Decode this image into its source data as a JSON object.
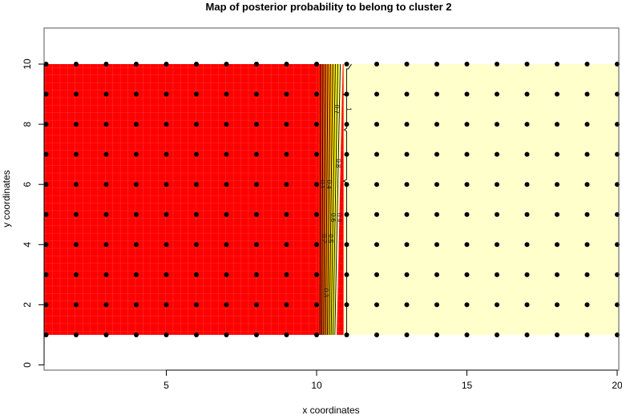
{
  "chart_data": {
    "type": "heatmap",
    "title": "Map of posterior probability to belong to cluster  2",
    "xlabel": "x coordinates",
    "ylabel": "y coordinates",
    "xlim": [
      1,
      20
    ],
    "ylim": [
      -0.2,
      11.2
    ],
    "x_ticks": [
      5,
      10,
      15,
      20
    ],
    "y_ticks": [
      0,
      2,
      4,
      6,
      8,
      10
    ],
    "grid": false,
    "colors": {
      "low": "#ff0000",
      "mid": "#ff8000",
      "high_edge": "#ffff00",
      "high": "#ffffcc",
      "points": "#000000"
    },
    "points": {
      "x": [
        1,
        2,
        3,
        4,
        5,
        6,
        7,
        8,
        9,
        10,
        11,
        12,
        13,
        14,
        15,
        16,
        17,
        18,
        19,
        20
      ],
      "y": [
        1,
        2,
        3,
        4,
        5,
        6,
        7,
        8,
        9,
        10
      ]
    },
    "probability": {
      "x_below_10": 0,
      "x_above_11": 1
    },
    "contour_levels": [
      "0.1",
      "0.2",
      "0.3",
      "0.4",
      "0.5",
      "0.6",
      "0.7",
      "0.8",
      "0.9",
      "1"
    ]
  }
}
